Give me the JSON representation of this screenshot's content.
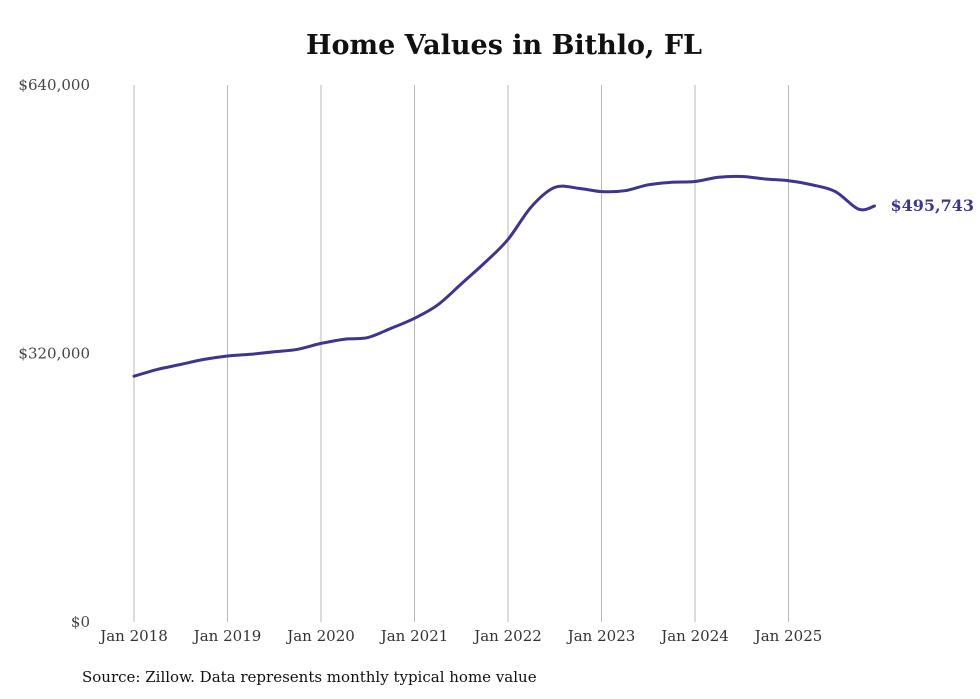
{
  "chart_data": {
    "type": "line",
    "title": "Home Values in Bithlo, FL",
    "xlabel": "",
    "ylabel": "",
    "ylim": [
      0,
      640000
    ],
    "y_ticks": [
      0,
      320000,
      640000
    ],
    "y_tick_labels": [
      "$0",
      "$320,000",
      "$640,000"
    ],
    "x_tick_labels": [
      "Jan 2018",
      "Jan 2019",
      "Jan 2020",
      "Jan 2021",
      "Jan 2022",
      "Jan 2023",
      "Jan 2024",
      "Jan 2025"
    ],
    "grid": "vertical",
    "line_color": "#3d3590",
    "series": [
      {
        "name": "Typical home value",
        "x": [
          2018.0,
          2018.25,
          2018.5,
          2018.75,
          2019.0,
          2019.25,
          2019.5,
          2019.75,
          2020.0,
          2020.25,
          2020.5,
          2020.75,
          2021.0,
          2021.25,
          2021.5,
          2021.75,
          2022.0,
          2022.25,
          2022.5,
          2022.75,
          2023.0,
          2023.25,
          2023.5,
          2023.75,
          2024.0,
          2024.25,
          2024.5,
          2024.75,
          2025.0,
          2025.25,
          2025.5,
          2025.75,
          2025.92
        ],
        "values": [
          293000,
          301000,
          307000,
          313000,
          317000,
          319000,
          322000,
          325000,
          332000,
          337000,
          339000,
          350000,
          362000,
          378000,
          403000,
          428000,
          456000,
          495000,
          518000,
          517000,
          513000,
          514000,
          521000,
          524000,
          525000,
          530000,
          531000,
          528000,
          526000,
          521000,
          513000,
          492000,
          495743
        ]
      }
    ],
    "end_label": "$495,743",
    "source": "Source: Zillow. Data represents monthly typical home value"
  }
}
